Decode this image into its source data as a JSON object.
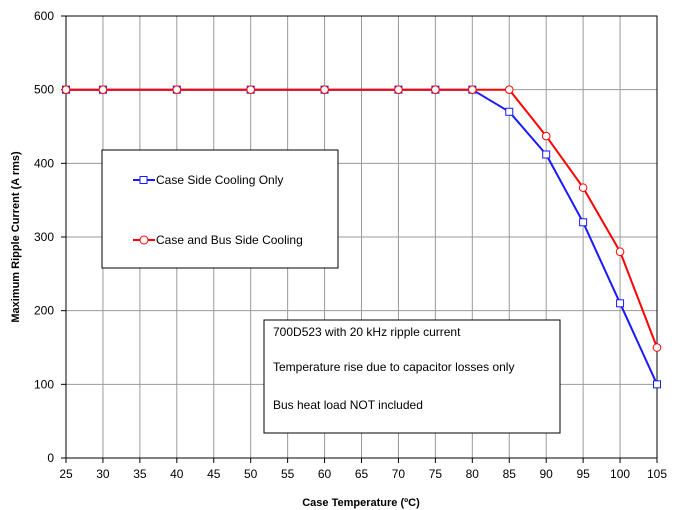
{
  "chart_data": {
    "type": "line",
    "xlabel": "Case Temperature (ºC)",
    "ylabel": "Maximum Ripple Current (A rms)",
    "ylim": [
      0,
      600
    ],
    "yticks": [
      0,
      100,
      200,
      300,
      400,
      500,
      600
    ],
    "categories": [
      "25",
      "30",
      "35",
      "40",
      "45",
      "50",
      "55",
      "60",
      "65",
      "70",
      "75",
      "80",
      "85",
      "90",
      "95",
      "100",
      "105"
    ],
    "grid": true,
    "series": [
      {
        "name": "Case Side Cooling Only",
        "color": "#1a1aff",
        "marker": "square",
        "points": [
          [
            25,
            500
          ],
          [
            30,
            500
          ],
          [
            40,
            500
          ],
          [
            50,
            500
          ],
          [
            60,
            500
          ],
          [
            70,
            500
          ],
          [
            75,
            500
          ],
          [
            80,
            500
          ],
          [
            85,
            470
          ],
          [
            90,
            412
          ],
          [
            95,
            320
          ],
          [
            100,
            210
          ],
          [
            105,
            100
          ]
        ]
      },
      {
        "name": "Case and Bus Side Cooling",
        "color": "#ff0000",
        "marker": "circle",
        "points": [
          [
            25,
            500
          ],
          [
            30,
            500
          ],
          [
            40,
            500
          ],
          [
            50,
            500
          ],
          [
            60,
            500
          ],
          [
            70,
            500
          ],
          [
            75,
            500
          ],
          [
            80,
            500
          ],
          [
            85,
            500
          ],
          [
            90,
            437
          ],
          [
            95,
            367
          ],
          [
            100,
            280
          ],
          [
            105,
            150
          ]
        ]
      }
    ],
    "legend_position": "center-left",
    "annotations": [
      "700D523 with 20 kHz ripple current",
      "Temperature rise due to capacitor losses only",
      "Bus heat load NOT included"
    ]
  }
}
